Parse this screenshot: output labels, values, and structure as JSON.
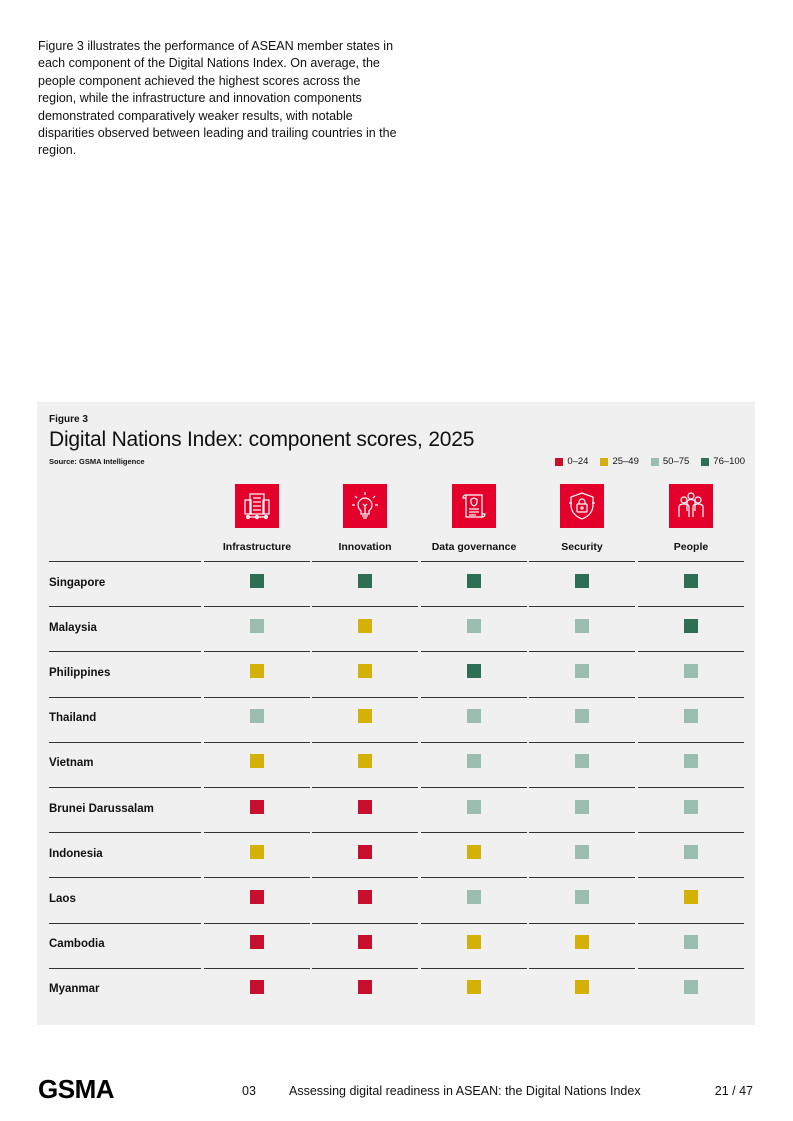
{
  "intro": {
    "text": "Figure 3 illustrates the performance of ASEAN member states in each component of the Digital Nations Index. On average, the people component achieved the highest scores across the region, while the infrastructure and innovation components demonstrated comparatively weaker results, with notable disparities observed between leading and trailing countries in the region."
  },
  "figure": {
    "label": "Figure 3",
    "title": "Digital Nations Index: component scores, 2025",
    "source": "Source: GSMA Intelligence"
  },
  "colors": {
    "low": "#c8102e",
    "midlow": "#d4b106",
    "midhigh": "#9bbdb0",
    "high": "#2e6e54"
  },
  "chart_data": {
    "type": "table",
    "title": "Digital Nations Index: component scores, 2025",
    "legend": [
      {
        "label": "0–24",
        "key": "low"
      },
      {
        "label": "25–49",
        "key": "midlow"
      },
      {
        "label": "50–75",
        "key": "midhigh"
      },
      {
        "label": "76–100",
        "key": "high"
      }
    ],
    "columns": [
      {
        "label": "Infrastructure",
        "icon": "infrastructure-icon"
      },
      {
        "label": "Innovation",
        "icon": "lightbulb-icon"
      },
      {
        "label": "Data governance",
        "icon": "document-icon"
      },
      {
        "label": "Security",
        "icon": "shield-lock-icon"
      },
      {
        "label": "People",
        "icon": "people-icon"
      }
    ],
    "rows": [
      {
        "country": "Singapore",
        "bands": [
          "76–100",
          "76–100",
          "76–100",
          "76–100",
          "76–100"
        ]
      },
      {
        "country": "Malaysia",
        "bands": [
          "50–75",
          "25–49",
          "50–75",
          "50–75",
          "76–100"
        ]
      },
      {
        "country": "Philippines",
        "bands": [
          "25–49",
          "25–49",
          "76–100",
          "50–75",
          "50–75"
        ]
      },
      {
        "country": "Thailand",
        "bands": [
          "50–75",
          "25–49",
          "50–75",
          "50–75",
          "50–75"
        ]
      },
      {
        "country": "Vietnam",
        "bands": [
          "25–49",
          "25–49",
          "50–75",
          "50–75",
          "50–75"
        ]
      },
      {
        "country": "Brunei Darussalam",
        "bands": [
          "0–24",
          "0–24",
          "50–75",
          "50–75",
          "50–75"
        ]
      },
      {
        "country": "Indonesia",
        "bands": [
          "25–49",
          "0–24",
          "25–49",
          "50–75",
          "50–75"
        ]
      },
      {
        "country": "Laos",
        "bands": [
          "0–24",
          "0–24",
          "50–75",
          "50–75",
          "25–49"
        ]
      },
      {
        "country": "Cambodia",
        "bands": [
          "0–24",
          "0–24",
          "25–49",
          "25–49",
          "50–75"
        ]
      },
      {
        "country": "Myanmar",
        "bands": [
          "0–24",
          "0–24",
          "25–49",
          "25–49",
          "50–75"
        ]
      }
    ]
  },
  "footer": {
    "logo": "GSMA",
    "section": "03",
    "title": "Assessing digital readiness in ASEAN: the Digital Nations Index",
    "page": "21 / 47"
  }
}
